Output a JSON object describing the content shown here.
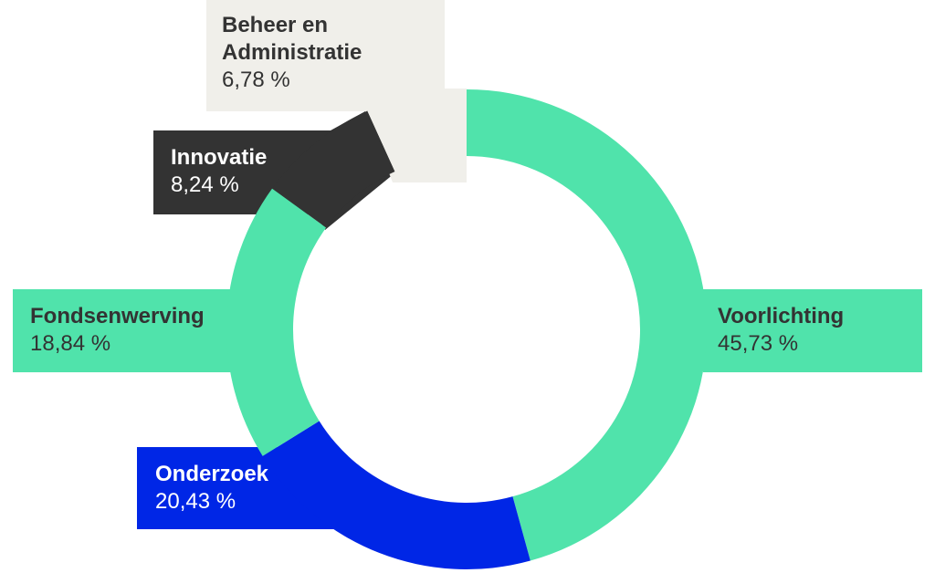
{
  "chart_data": {
    "type": "donut",
    "categories": [
      "Voorlichting",
      "Onderzoek",
      "Fondsenwerving",
      "Innovatie",
      "Beheer en Administratie"
    ],
    "values": [
      45.73,
      20.43,
      18.84,
      8.24,
      6.78
    ],
    "value_labels": [
      "45,73 %",
      "20,43 %",
      "18,84 %",
      "8,24 %",
      "6,78 %"
    ],
    "colors": [
      "#50e3ab",
      "#0026e6",
      "#50e3ab",
      "#333333",
      "#f0efea"
    ]
  }
}
